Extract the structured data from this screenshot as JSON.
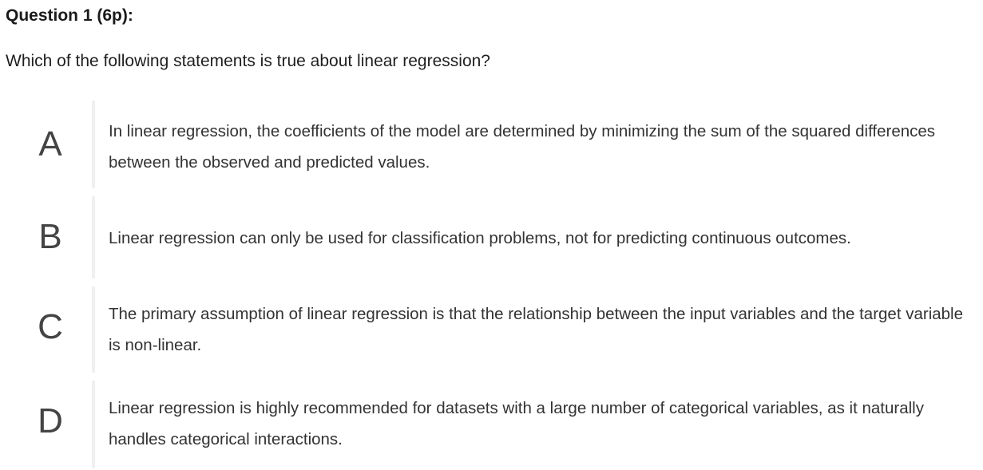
{
  "question": {
    "title": "Question 1 (6p):",
    "text": "Which of the following statements is true about linear regression?"
  },
  "options": [
    {
      "letter": "A",
      "text": "In linear regression, the coefficients of the model are determined by minimizing the sum of the squared differences between the observed and predicted values."
    },
    {
      "letter": "B",
      "text": "Linear regression can only be used for classification problems, not for predicting continuous outcomes."
    },
    {
      "letter": "C",
      "text": "The primary assumption of linear regression is that the relationship between the input variables and the target variable is non-linear."
    },
    {
      "letter": "D",
      "text": "Linear regression is highly recommended for datasets with a large number of categorical variables, as it naturally handles categorical interactions."
    }
  ]
}
